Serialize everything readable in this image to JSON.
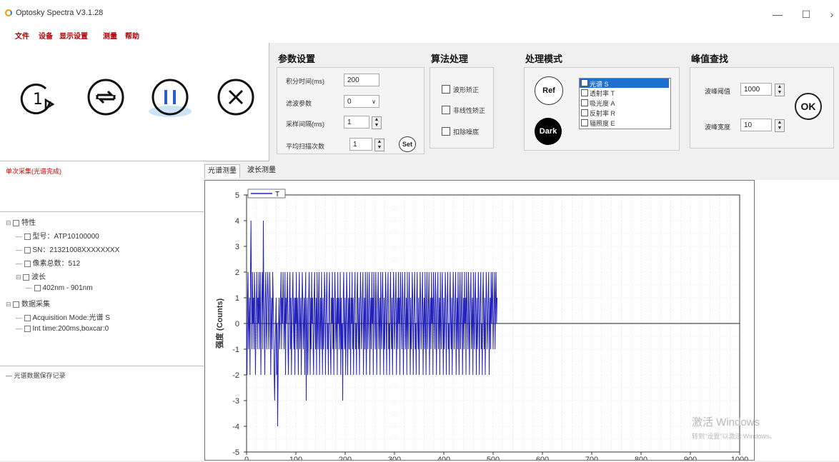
{
  "window": {
    "title": "Optosky Spectra V3.1.28",
    "minimize": "—",
    "maximize": "☐",
    "close": "›"
  },
  "menu": [
    "文件",
    "设备",
    "显示设置",
    "测量",
    "帮助"
  ],
  "params": {
    "title": "参数设置",
    "integration_label": "积分时间(ms)",
    "integration_value": "200",
    "filter_label": "滤波参数",
    "filter_value": "0",
    "interval_label": "采样间隔(ms)",
    "interval_value": "1",
    "avg_label": "平均扫描次数",
    "avg_value": "1",
    "set_label": "Set"
  },
  "algo": {
    "title": "算法处理",
    "items": [
      "波形矫正",
      "非线性矫正",
      "扣除噪底"
    ]
  },
  "mode": {
    "title": "处理模式",
    "ref": "Ref",
    "dark": "Dark",
    "options": [
      "光谱 S",
      "透射率 T",
      "吸光度 A",
      "反射率 R",
      "辐照度 E"
    ],
    "selected_index": 0
  },
  "peak": {
    "title": "峰值查找",
    "threshold_label": "波峰阈值",
    "threshold_value": "1000",
    "width_label": "波峰宽度",
    "width_value": "10",
    "ok": "OK"
  },
  "status": {
    "message": "单次采集(光谱完成)",
    "message_color": "#cc0000"
  },
  "tree": {
    "nodes": [
      {
        "text": "特性",
        "level": 0,
        "expander": "⊟"
      },
      {
        "text": "型号：ATP10100000",
        "level": 1
      },
      {
        "text": "SN：21321008XXXXXXXX",
        "level": 1
      },
      {
        "text": "像素总数：512",
        "level": 1
      },
      {
        "text": "波长",
        "level": 1,
        "expander": "⊟"
      },
      {
        "text": "402nm - 901nm",
        "level": 2
      },
      {
        "text": "数据采集",
        "level": 0,
        "expander": "⊟"
      },
      {
        "text": "Acquisition Mode:光谱 S",
        "level": 1
      },
      {
        "text": "Int time:200ms,boxcar:0",
        "level": 1
      }
    ]
  },
  "save_panel": {
    "label": "光谱数据保存记录"
  },
  "tabs": [
    "光谱测量",
    "波长测量"
  ],
  "chart_data": {
    "type": "line",
    "ylabel": "强度 (Counts)",
    "ylim": [
      -5,
      5
    ],
    "yticks": [
      5,
      4,
      3,
      2,
      1,
      0,
      -1,
      -2,
      -3,
      -4,
      -5
    ],
    "xlim": [
      0,
      1000
    ],
    "xticks": [
      0,
      100,
      200,
      300,
      400,
      500,
      600,
      700,
      800,
      900,
      1000
    ],
    "legend": "T",
    "series": [
      {
        "name": "T",
        "color": "#2222bb",
        "x_start": 0,
        "x_step": 1,
        "values": [
          0,
          -2,
          1,
          2,
          -1,
          0,
          1,
          -2,
          2,
          4,
          1,
          -1,
          2,
          0,
          1,
          -1,
          2,
          1,
          -2,
          0,
          1,
          2,
          -1,
          1,
          0,
          2,
          -1,
          1,
          2,
          -2,
          0,
          1,
          2,
          -1,
          4,
          1,
          0,
          -2,
          1,
          2,
          0,
          -1,
          1,
          2,
          1,
          -1,
          0,
          2,
          1,
          -2,
          0,
          1,
          -1,
          2,
          1,
          0,
          -2,
          -3,
          -1,
          0,
          1,
          -2,
          0,
          -4,
          -2,
          0,
          1,
          -1,
          0,
          1,
          2,
          -1,
          1,
          0,
          2,
          1,
          -1,
          0,
          2,
          -2,
          1,
          0,
          1,
          2,
          -1,
          -2,
          0,
          1,
          2,
          -1,
          1,
          -2,
          0,
          1,
          2,
          0,
          -1,
          1,
          -2,
          1,
          0,
          2,
          -1,
          1,
          0,
          -2,
          1,
          2,
          -1,
          0,
          1,
          -2,
          0,
          2,
          1,
          -1,
          0,
          1,
          -2,
          1,
          2,
          -3,
          0,
          1,
          -2,
          -1,
          1,
          2,
          0,
          -2,
          1,
          -1,
          2,
          0,
          1,
          -1,
          -2,
          1,
          2,
          0,
          -1,
          1,
          -2,
          2,
          0,
          -1,
          1,
          2,
          -2,
          0,
          1,
          -1,
          2,
          0,
          -2,
          1,
          -1,
          0,
          2,
          1,
          -2,
          0,
          1,
          2,
          -1,
          0,
          -2,
          1,
          2,
          0,
          -1,
          -2,
          1,
          0,
          2,
          -1,
          1,
          -2,
          0,
          2,
          1,
          -1,
          0,
          1,
          -2,
          2,
          0,
          1,
          -1,
          0,
          2,
          -2,
          1,
          -1,
          0,
          -3,
          1,
          2,
          0,
          -1,
          1,
          -2,
          0,
          2,
          1,
          -2,
          0,
          1,
          -1,
          2,
          0,
          -2,
          1,
          0,
          2,
          -1,
          1,
          -2,
          0,
          1,
          2,
          -1,
          0,
          -2,
          1,
          2,
          0,
          -1,
          1,
          -2,
          0,
          2,
          1,
          -1,
          0,
          1,
          2,
          -2,
          0,
          1,
          -1,
          2,
          0,
          -2,
          1,
          2,
          -1,
          0,
          1,
          2,
          -2,
          0,
          1,
          -1,
          2,
          0,
          1,
          -2,
          2,
          1,
          0,
          -1,
          2,
          1,
          -2,
          0,
          1,
          2,
          -1,
          0,
          1,
          -2,
          2,
          0,
          -1,
          1,
          2,
          0,
          -2,
          1,
          -1,
          0,
          2,
          1,
          -2,
          0,
          1,
          2,
          -1,
          0,
          -2,
          1,
          2,
          0,
          -1,
          1,
          -2,
          0,
          2,
          1,
          -1,
          0,
          1,
          2,
          -2,
          0,
          1,
          -1,
          2,
          0,
          1,
          -2,
          2,
          1,
          0,
          -1,
          2,
          1,
          -2,
          0,
          1,
          2,
          -1,
          0,
          1,
          -2,
          2,
          0,
          -1,
          1,
          2,
          0,
          -2,
          1,
          -1,
          0,
          2,
          1,
          -2,
          0,
          1,
          2,
          -1,
          0,
          -2,
          1,
          2,
          0,
          -1,
          1,
          -2,
          0,
          2,
          1,
          -1,
          0,
          1,
          2,
          -2,
          0,
          1,
          -1,
          2,
          0,
          -2,
          1,
          2,
          -1,
          0,
          1,
          2,
          -2,
          0,
          1,
          -1,
          2,
          0,
          1,
          -2,
          2,
          1,
          0,
          -1,
          2,
          1,
          -2,
          0,
          1,
          2,
          -1,
          0,
          1,
          -2,
          2,
          0,
          -1,
          1,
          2,
          0,
          -2,
          1,
          -1,
          0,
          2,
          1,
          -2,
          0,
          1,
          2,
          -1,
          0,
          -2,
          1,
          2,
          0,
          -1,
          1,
          -2,
          0,
          2,
          1,
          -1,
          0,
          1,
          2,
          -2,
          0,
          1,
          -1,
          2,
          0,
          -2,
          1,
          2,
          -1,
          0,
          1,
          2,
          -2,
          0,
          1,
          -1,
          2,
          0,
          1,
          -2,
          2,
          1,
          0,
          -1,
          2,
          1,
          -2,
          0,
          1,
          2,
          -1,
          0,
          1,
          -2,
          2,
          0,
          -1,
          1,
          2,
          0,
          -2,
          1,
          -1,
          0,
          2,
          1,
          -2,
          0,
          1,
          2,
          -1,
          0,
          -2,
          1,
          2,
          0,
          -1,
          1,
          -2,
          0,
          2,
          1,
          -1,
          0,
          1,
          2,
          -2,
          0,
          1,
          -1,
          2,
          0,
          1,
          2,
          -1,
          0,
          1,
          2,
          -1,
          1,
          2,
          0,
          1
        ]
      }
    ]
  },
  "watermark": {
    "line1": "激活 Windows",
    "line2": "转到\"设置\"以激活 Windows。"
  }
}
